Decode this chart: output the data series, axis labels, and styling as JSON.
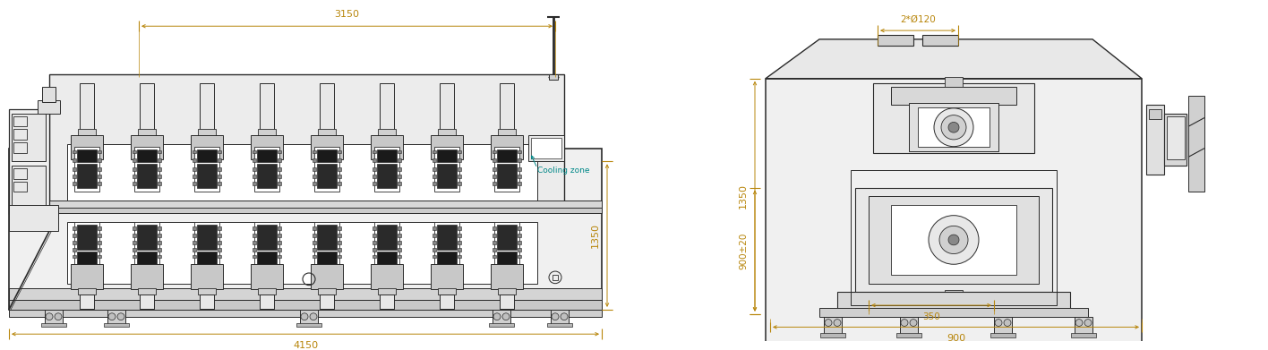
{
  "bg_color": "#ffffff",
  "lc": "#2a2a2a",
  "dc": "#b8860b",
  "cc": "#008888",
  "fig_width": 14.16,
  "fig_height": 3.91,
  "dpi": 100
}
